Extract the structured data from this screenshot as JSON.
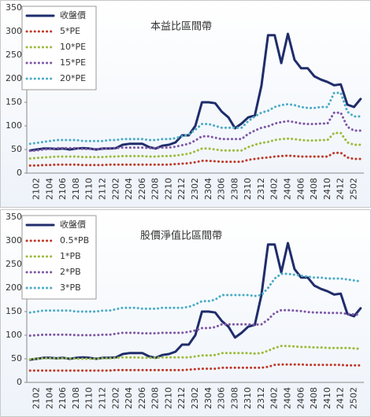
{
  "chart_data": [
    {
      "type": "line",
      "title": "本益比區間帶",
      "categories": [
        null,
        "2102",
        null,
        "2104",
        null,
        "2106",
        null,
        "2108",
        null,
        "2110",
        null,
        "2112",
        null,
        "2202",
        null,
        "2204",
        null,
        "2206",
        null,
        "2208",
        null,
        "2210",
        null,
        "2212",
        null,
        "2302",
        null,
        "2304",
        null,
        "2306",
        null,
        "2308",
        null,
        "2310",
        null,
        "2312",
        null,
        "2402",
        null,
        "2404",
        null,
        "2406",
        null,
        "2408",
        null,
        "2410",
        null,
        "2412",
        null,
        "2502",
        null
      ],
      "ylim": [
        0,
        350
      ],
      "yticks": [
        0,
        50,
        100,
        150,
        200,
        250,
        300,
        350
      ],
      "series": [
        {
          "name": "收盤價",
          "color": "#1f2d6b",
          "line_style": "solid",
          "values": [
            48,
            50,
            52,
            52,
            51,
            52,
            50,
            52,
            53,
            52,
            50,
            52,
            52,
            53,
            60,
            62,
            62,
            62,
            55,
            52,
            58,
            60,
            65,
            80,
            80,
            100,
            150,
            150,
            148,
            130,
            118,
            95,
            105,
            118,
            122,
            185,
            292,
            292,
            233,
            295,
            240,
            222,
            222,
            205,
            198,
            193,
            186,
            188,
            145,
            140,
            157
          ]
        },
        {
          "name": "5*PE",
          "color": "#c0392b",
          "line_style": "dotted",
          "values": [
            16,
            16,
            17,
            17,
            18,
            18,
            18,
            18,
            17,
            17,
            17,
            17,
            18,
            18,
            18,
            18,
            18,
            18,
            18,
            18,
            18,
            18,
            19,
            20,
            21,
            23,
            26,
            26,
            25,
            24,
            24,
            24,
            24,
            28,
            30,
            32,
            33,
            35,
            36,
            37,
            36,
            35,
            35,
            35,
            35,
            35,
            43,
            43,
            33,
            30,
            30
          ]
        },
        {
          "name": "10*PE",
          "color": "#9bbb3b",
          "line_style": "dotted",
          "values": [
            31,
            32,
            33,
            34,
            35,
            35,
            35,
            35,
            34,
            34,
            34,
            34,
            35,
            35,
            36,
            36,
            36,
            36,
            35,
            35,
            36,
            36,
            37,
            39,
            41,
            46,
            52,
            52,
            50,
            48,
            48,
            48,
            48,
            55,
            60,
            64,
            66,
            70,
            72,
            73,
            72,
            70,
            69,
            69,
            70,
            70,
            85,
            85,
            65,
            60,
            60
          ]
        },
        {
          "name": "15*PE",
          "color": "#7e57a5",
          "line_style": "dotted",
          "values": [
            47,
            48,
            50,
            51,
            53,
            53,
            53,
            53,
            51,
            51,
            51,
            51,
            53,
            53,
            54,
            54,
            54,
            54,
            53,
            53,
            54,
            54,
            56,
            59,
            62,
            69,
            78,
            78,
            75,
            72,
            72,
            72,
            72,
            83,
            90,
            96,
            99,
            105,
            108,
            110,
            108,
            105,
            104,
            104,
            105,
            105,
            128,
            128,
            98,
            90,
            90
          ]
        },
        {
          "name": "20*PE",
          "color": "#4bacc6",
          "line_style": "dotted",
          "values": [
            62,
            64,
            66,
            68,
            70,
            70,
            70,
            70,
            68,
            68,
            68,
            68,
            70,
            70,
            72,
            72,
            72,
            72,
            70,
            70,
            72,
            72,
            74,
            78,
            82,
            92,
            104,
            104,
            100,
            96,
            96,
            96,
            96,
            110,
            120,
            128,
            132,
            140,
            144,
            146,
            144,
            140,
            138,
            138,
            140,
            140,
            170,
            170,
            130,
            120,
            120
          ]
        }
      ]
    },
    {
      "type": "line",
      "title": "股價淨值比區間帶",
      "categories": [
        null,
        "2102",
        null,
        "2104",
        null,
        "2106",
        null,
        "2108",
        null,
        "2110",
        null,
        "2112",
        null,
        "2202",
        null,
        "2204",
        null,
        "2206",
        null,
        "2208",
        null,
        "2210",
        null,
        "2212",
        null,
        "2302",
        null,
        "2304",
        null,
        "2306",
        null,
        "2308",
        null,
        "2310",
        null,
        "2312",
        null,
        "2402",
        null,
        "2404",
        null,
        "2406",
        null,
        "2408",
        null,
        "2410",
        null,
        "2412",
        null,
        "2502",
        null
      ],
      "ylim": [
        0,
        350
      ],
      "yticks": [
        0,
        50,
        100,
        150,
        200,
        250,
        300,
        350
      ],
      "series": [
        {
          "name": "收盤價",
          "color": "#1f2d6b",
          "line_style": "solid",
          "values": [
            48,
            50,
            52,
            52,
            51,
            52,
            50,
            52,
            53,
            52,
            50,
            52,
            52,
            53,
            60,
            62,
            62,
            62,
            55,
            52,
            58,
            60,
            65,
            80,
            80,
            100,
            150,
            150,
            148,
            130,
            118,
            95,
            105,
            118,
            122,
            185,
            292,
            292,
            233,
            295,
            240,
            222,
            222,
            205,
            198,
            193,
            186,
            188,
            145,
            140,
            157
          ]
        },
        {
          "name": "0.5*PB",
          "color": "#c0392b",
          "line_style": "dotted",
          "values": [
            25,
            25,
            25,
            25,
            25,
            25,
            25,
            25,
            25,
            25,
            25,
            25,
            25,
            26,
            26,
            26,
            26,
            26,
            26,
            26,
            26,
            26,
            26,
            26,
            27,
            28,
            29,
            29,
            29,
            31,
            31,
            31,
            31,
            31,
            31,
            31,
            33,
            37,
            38,
            38,
            38,
            38,
            37,
            37,
            37,
            37,
            37,
            37,
            36,
            36,
            36
          ]
        },
        {
          "name": "1*PB",
          "color": "#9bbb3b",
          "line_style": "dotted",
          "values": [
            49,
            50,
            51,
            51,
            51,
            51,
            51,
            50,
            50,
            50,
            50,
            51,
            51,
            52,
            53,
            53,
            53,
            52,
            52,
            52,
            53,
            53,
            53,
            53,
            53,
            55,
            57,
            57,
            58,
            62,
            62,
            62,
            62,
            62,
            61,
            62,
            67,
            73,
            77,
            77,
            76,
            75,
            75,
            74,
            74,
            73,
            73,
            73,
            73,
            72,
            71
          ]
        },
        {
          "name": "2*PB",
          "color": "#7e57a5",
          "line_style": "dotted",
          "values": [
            99,
            100,
            101,
            101,
            101,
            101,
            101,
            100,
            100,
            100,
            100,
            101,
            101,
            103,
            105,
            105,
            105,
            104,
            104,
            104,
            105,
            105,
            105,
            105,
            107,
            110,
            115,
            115,
            117,
            123,
            123,
            123,
            123,
            123,
            122,
            123,
            133,
            147,
            153,
            153,
            152,
            151,
            149,
            148,
            148,
            147,
            147,
            147,
            145,
            144,
            143
          ]
        },
        {
          "name": "3*PB",
          "color": "#4bacc6",
          "line_style": "dotted",
          "values": [
            148,
            150,
            152,
            152,
            152,
            152,
            152,
            150,
            150,
            150,
            150,
            152,
            152,
            155,
            158,
            158,
            158,
            156,
            156,
            156,
            158,
            158,
            158,
            158,
            160,
            165,
            172,
            172,
            175,
            185,
            185,
            185,
            185,
            185,
            183,
            185,
            200,
            220,
            230,
            230,
            228,
            226,
            224,
            222,
            222,
            220,
            220,
            220,
            218,
            216,
            214
          ]
        }
      ]
    }
  ]
}
